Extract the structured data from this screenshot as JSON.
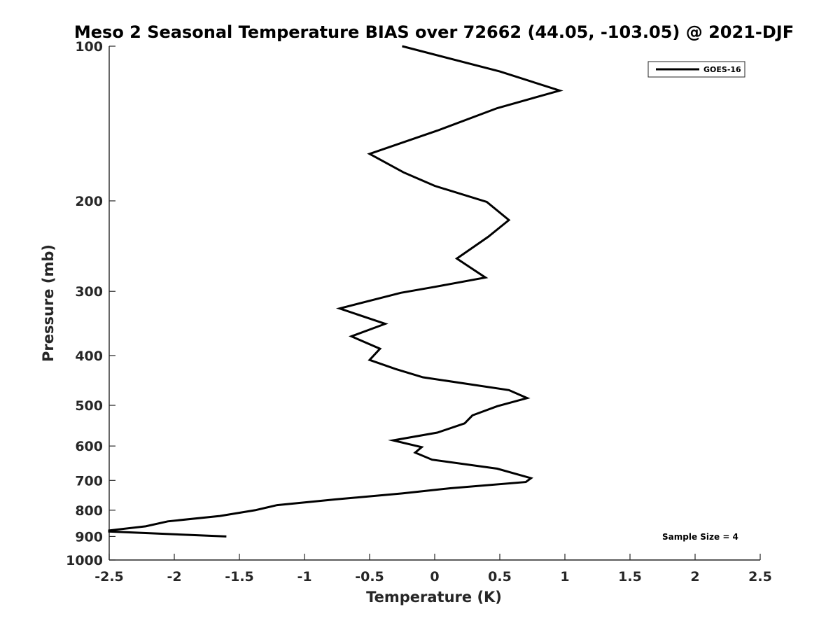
{
  "chart_data": {
    "type": "line",
    "title": "Meso 2 Seasonal Temperature BIAS over 72662 (44.05, -103.05) @ 2021-DJF",
    "xlabel": "Temperature (K)",
    "ylabel": "Pressure (mb)",
    "xlim": [
      -2.5,
      2.5
    ],
    "ylim": [
      100,
      1000
    ],
    "yscale": "log",
    "y_reversed": true,
    "grid": false,
    "x_ticks": [
      -2.5,
      -2,
      -1.5,
      -1,
      -0.5,
      0,
      0.5,
      1,
      1.5,
      2,
      2.5
    ],
    "x_tick_labels": [
      "-2.5",
      "-2",
      "-1.5",
      "-1",
      "-0.5",
      "0",
      "0.5",
      "1",
      "1.5",
      "2",
      "2.5"
    ],
    "y_ticks": [
      100,
      200,
      300,
      400,
      500,
      600,
      700,
      800,
      900,
      1000
    ],
    "y_tick_labels": [
      "100",
      "200",
      "300",
      "400",
      "500",
      "600",
      "700",
      "800",
      "900",
      "1000"
    ],
    "legend_position": "top-right",
    "series": [
      {
        "name": "GOES-16",
        "color": "#000000",
        "points": [
          {
            "x": -0.25,
            "p": 100
          },
          {
            "x": 0.5,
            "p": 112
          },
          {
            "x": 0.96,
            "p": 122
          },
          {
            "x": 0.48,
            "p": 132
          },
          {
            "x": 0.02,
            "p": 146
          },
          {
            "x": -0.5,
            "p": 162
          },
          {
            "x": -0.24,
            "p": 176
          },
          {
            "x": 0.0,
            "p": 187
          },
          {
            "x": 0.4,
            "p": 201
          },
          {
            "x": 0.57,
            "p": 218
          },
          {
            "x": 0.41,
            "p": 235
          },
          {
            "x": 0.17,
            "p": 259
          },
          {
            "x": 0.39,
            "p": 282
          },
          {
            "x": 0.0,
            "p": 294
          },
          {
            "x": -0.26,
            "p": 302
          },
          {
            "x": -0.73,
            "p": 324
          },
          {
            "x": -0.38,
            "p": 347
          },
          {
            "x": -0.64,
            "p": 367
          },
          {
            "x": -0.42,
            "p": 388
          },
          {
            "x": -0.5,
            "p": 408
          },
          {
            "x": -0.3,
            "p": 425
          },
          {
            "x": -0.09,
            "p": 441
          },
          {
            "x": 0.57,
            "p": 467
          },
          {
            "x": 0.71,
            "p": 484
          },
          {
            "x": 0.48,
            "p": 502
          },
          {
            "x": 0.29,
            "p": 523
          },
          {
            "x": 0.23,
            "p": 542
          },
          {
            "x": 0.02,
            "p": 565
          },
          {
            "x": -0.32,
            "p": 585
          },
          {
            "x": -0.1,
            "p": 603
          },
          {
            "x": -0.15,
            "p": 618
          },
          {
            "x": -0.02,
            "p": 638
          },
          {
            "x": 0.48,
            "p": 664
          },
          {
            "x": 0.74,
            "p": 693
          },
          {
            "x": 0.7,
            "p": 705
          },
          {
            "x": 0.12,
            "p": 725
          },
          {
            "x": -0.25,
            "p": 742
          },
          {
            "x": -0.76,
            "p": 762
          },
          {
            "x": -1.21,
            "p": 782
          },
          {
            "x": -1.38,
            "p": 800
          },
          {
            "x": -1.65,
            "p": 821
          },
          {
            "x": -2.05,
            "p": 841
          },
          {
            "x": -2.22,
            "p": 860
          },
          {
            "x": -2.5,
            "p": 876
          },
          {
            "x": -2.5,
            "p": 880
          },
          {
            "x": -1.6,
            "p": 900
          }
        ]
      }
    ],
    "annotations": [
      {
        "text": "Sample Size = 4",
        "position": "bottom-right"
      }
    ]
  }
}
